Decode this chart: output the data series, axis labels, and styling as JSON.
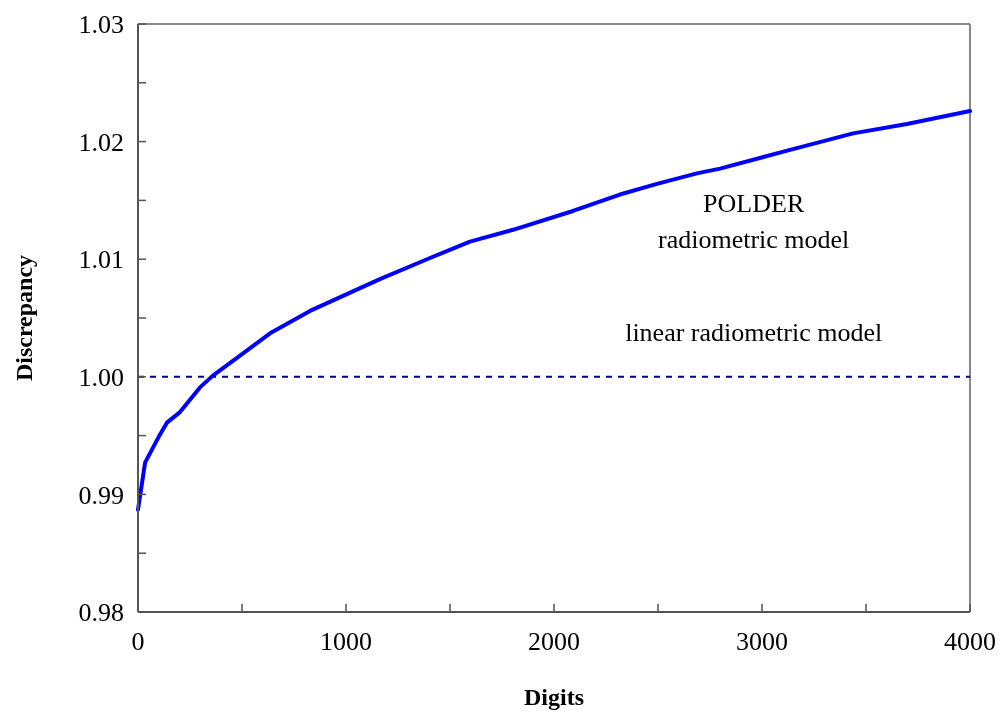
{
  "chart_data": {
    "type": "line",
    "xlabel": "Digits",
    "ylabel": "Discrepancy",
    "xlim": [
      0,
      4000
    ],
    "ylim": [
      0.98,
      1.03
    ],
    "xticks": [
      0,
      {
        "value": 500,
        "label": null
      },
      1000,
      {
        "value": 1500,
        "label": null
      },
      2000,
      {
        "value": 2500,
        "label": null
      },
      3000,
      {
        "value": 3500,
        "label": null
      },
      4000
    ],
    "yticks": [
      0.98,
      {
        "value": 0.985,
        "label": null
      },
      0.99,
      {
        "value": 0.995,
        "label": null
      },
      "1.00",
      {
        "value": 1.005,
        "label": null
      },
      1.01,
      {
        "value": 1.015,
        "label": null
      },
      1.02,
      {
        "value": 1.025,
        "label": null
      },
      1.03
    ],
    "grid": false,
    "marker": "none",
    "line_style": "solid",
    "series": [
      {
        "name": "POLDER radiometric model",
        "color": "#0000ff",
        "x": [
          0,
          34,
          106,
          139,
          202,
          298,
          360,
          505,
          635,
          827,
          1163,
          1404,
          1596,
          1803,
          2091,
          2317,
          2495,
          2687,
          2798,
          3135,
          3438,
          3697,
          4000
        ],
        "values": [
          0.9887,
          0.9927,
          0.9951,
          0.9961,
          0.997,
          0.9991,
          1.0001,
          1.002,
          1.0037,
          1.0056,
          1.0083,
          1.0101,
          1.0115,
          1.0125,
          1.0141,
          1.0155,
          1.0164,
          1.0173,
          1.0177,
          1.0193,
          1.0207,
          1.0215,
          1.0226
        ]
      }
    ],
    "ref_lines": [
      {
        "axis": "y",
        "value": 1.0,
        "label": "linear radiometric model",
        "color": "#000080",
        "line_style": "dashed"
      }
    ]
  }
}
